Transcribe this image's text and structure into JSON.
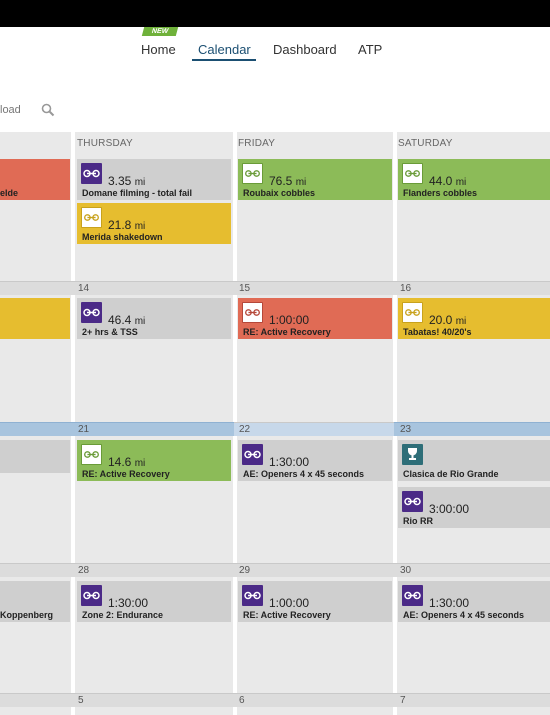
{
  "nav": {
    "new_badge": "NEW",
    "items": [
      {
        "label": "Home",
        "active": false
      },
      {
        "label": "Calendar",
        "active": true
      },
      {
        "label": "Dashboard",
        "active": false
      },
      {
        "label": "ATP",
        "active": false
      }
    ]
  },
  "toolbar": {
    "partial_label": "load",
    "search_icon": "search-icon"
  },
  "calendar": {
    "headers": [
      "THURSDAY",
      "FRIDAY",
      "SATURDAY"
    ],
    "weeks": [
      {
        "dates": [
          "14",
          "15",
          "16"
        ]
      },
      {
        "dates": [
          "21",
          "22",
          "23"
        ]
      },
      {
        "dates": [
          "28",
          "29",
          "30"
        ]
      },
      {
        "dates": [
          "5",
          "6",
          "7"
        ]
      }
    ],
    "cards": {
      "w1_left": {
        "title": "elde"
      },
      "w1_thu_1": {
        "value": "3.35",
        "unit": "mi",
        "title": "Domane filming - total fail"
      },
      "w1_thu_2": {
        "value": "21.8",
        "unit": "mi",
        "title": "Merida shakedown"
      },
      "w1_fri": {
        "value": "76.5",
        "unit": "mi",
        "title": "Roubaix cobbles"
      },
      "w1_sat": {
        "value": "44.0",
        "unit": "mi",
        "title": "Flanders cobbles"
      },
      "w2_thu": {
        "value": "46.4",
        "unit": "mi",
        "title": "2+ hrs & TSS"
      },
      "w2_fri": {
        "value": "1:00:00",
        "title": "RE: Active Recovery"
      },
      "w2_sat": {
        "value": "20.0",
        "unit": "mi",
        "title": "Tabatas! 40/20's"
      },
      "w3_thu": {
        "value": "14.6",
        "unit": "mi",
        "title": "RE: Active Recovery"
      },
      "w3_fri": {
        "value": "1:30:00",
        "title": "AE: Openers 4 x 45 seconds"
      },
      "w3_sat_1": {
        "title": "Clasica de Rio Grande"
      },
      "w3_sat_2": {
        "value": "3:00:00",
        "title": "Rio RR"
      },
      "w4_left": {
        "title": "Koppenberg"
      },
      "w4_thu": {
        "value": "1:30:00",
        "title": "Zone 2: Endurance"
      },
      "w4_fri": {
        "value": "1:00:00",
        "title": "RE: Active Recovery"
      },
      "w4_sat": {
        "value": "1:30:00",
        "title": "AE: Openers 4 x 45 seconds"
      }
    }
  },
  "colors": {
    "accent": "#1b4f72",
    "grey_card": "#cfcfcf",
    "green_card": "#8cbb58",
    "red_card": "#e06b55",
    "yellow_card": "#e6bd2f",
    "purple_icon": "#4b2a87"
  }
}
